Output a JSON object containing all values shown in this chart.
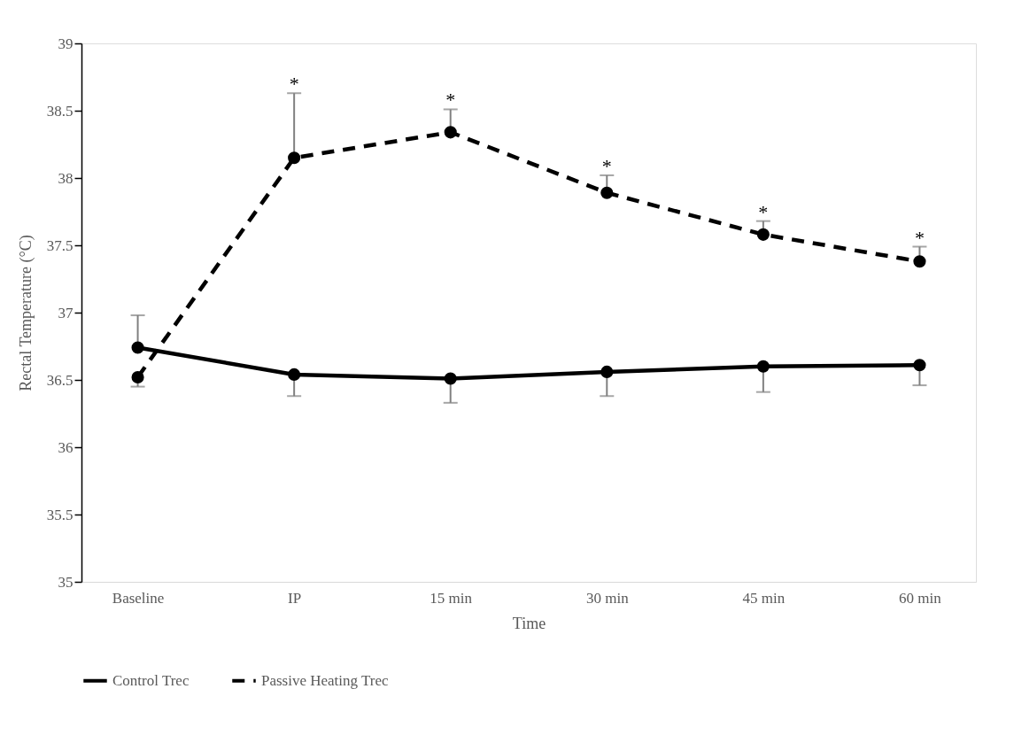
{
  "chart_data": {
    "type": "line",
    "xlabel": "Time",
    "ylabel": "Rectal Temperature (°C)",
    "categories": [
      "Baseline",
      "IP",
      "15 min",
      "30 min",
      "45 min",
      "60 min"
    ],
    "series": [
      {
        "name": "Control Trec",
        "color": "#000000",
        "line_style": "solid",
        "values": [
          36.74,
          36.54,
          36.51,
          36.56,
          36.6,
          36.61
        ],
        "errors": [
          [
            36.74,
            36.98
          ],
          [
            36.38,
            36.54
          ],
          [
            36.33,
            36.51
          ],
          [
            36.38,
            36.56
          ],
          [
            36.41,
            36.6
          ],
          [
            36.46,
            36.61
          ]
        ]
      },
      {
        "name": "Passive Heating Trec",
        "color": "#000000",
        "line_style": "dashed",
        "values": [
          36.52,
          38.15,
          38.34,
          37.89,
          37.58,
          37.38
        ],
        "errors": [
          [
            36.45,
            36.52
          ],
          [
            38.15,
            38.63
          ],
          [
            38.34,
            38.51
          ],
          [
            37.89,
            38.02
          ],
          [
            37.58,
            37.68
          ],
          [
            37.38,
            37.49
          ]
        ]
      }
    ],
    "annotations": [
      {
        "text": "*",
        "x": "IP",
        "y": 38.63
      },
      {
        "text": "*",
        "x": "15 min",
        "y": 38.51
      },
      {
        "text": "*",
        "x": "30 min",
        "y": 38.02
      },
      {
        "text": "*",
        "x": "45 min",
        "y": 37.68
      },
      {
        "text": "*",
        "x": "60 min",
        "y": 37.49
      }
    ],
    "ylim": [
      35,
      39
    ],
    "yticks": [
      35,
      35.5,
      36,
      36.5,
      37,
      37.5,
      38,
      38.5,
      39
    ],
    "marker": "circle",
    "grid": false,
    "legend": "bottom"
  }
}
